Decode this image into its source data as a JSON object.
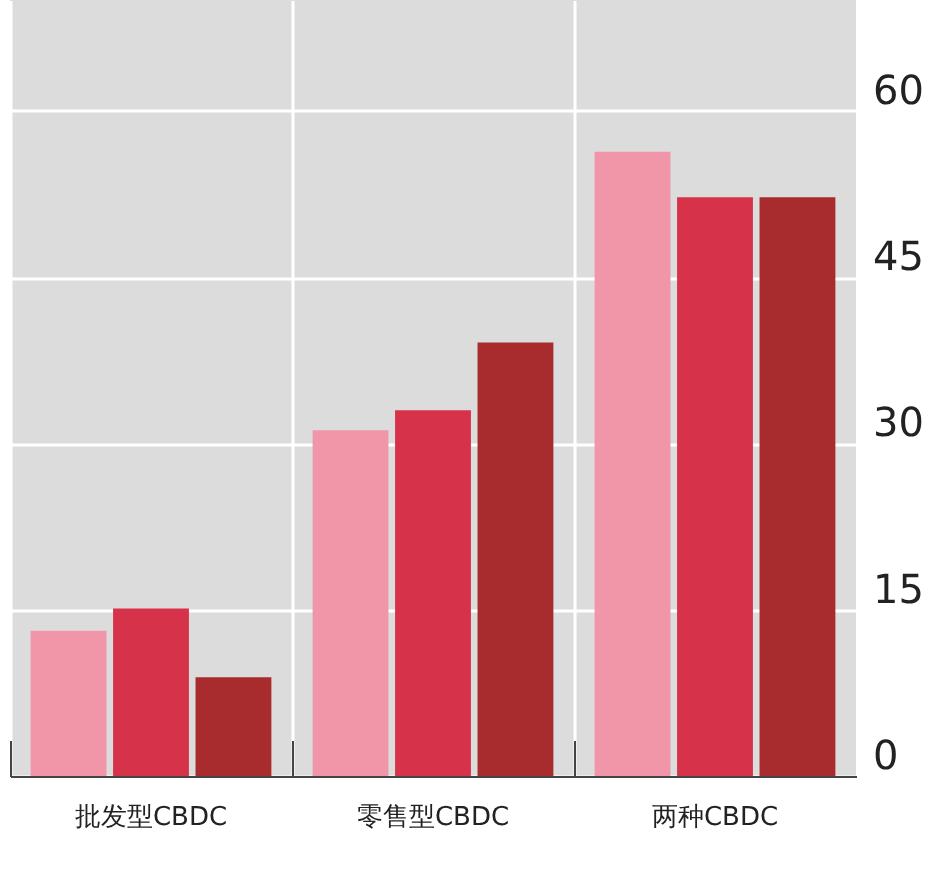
{
  "chart_data": {
    "type": "bar",
    "categories": [
      "批发型CBDC",
      "零售型CBDC",
      "两种CBDC"
    ],
    "series": [
      {
        "color": "#f096a8",
        "values": [
          13.1,
          31.2,
          56.3
        ]
      },
      {
        "color": "#d6324a",
        "values": [
          15.1,
          33.0,
          52.2
        ]
      },
      {
        "color": "#a82c2e",
        "values": [
          8.9,
          39.1,
          52.2
        ]
      }
    ],
    "ylim": [
      0,
      70
    ],
    "yticks": [
      0,
      15,
      30,
      45,
      60
    ],
    "grid": true
  }
}
